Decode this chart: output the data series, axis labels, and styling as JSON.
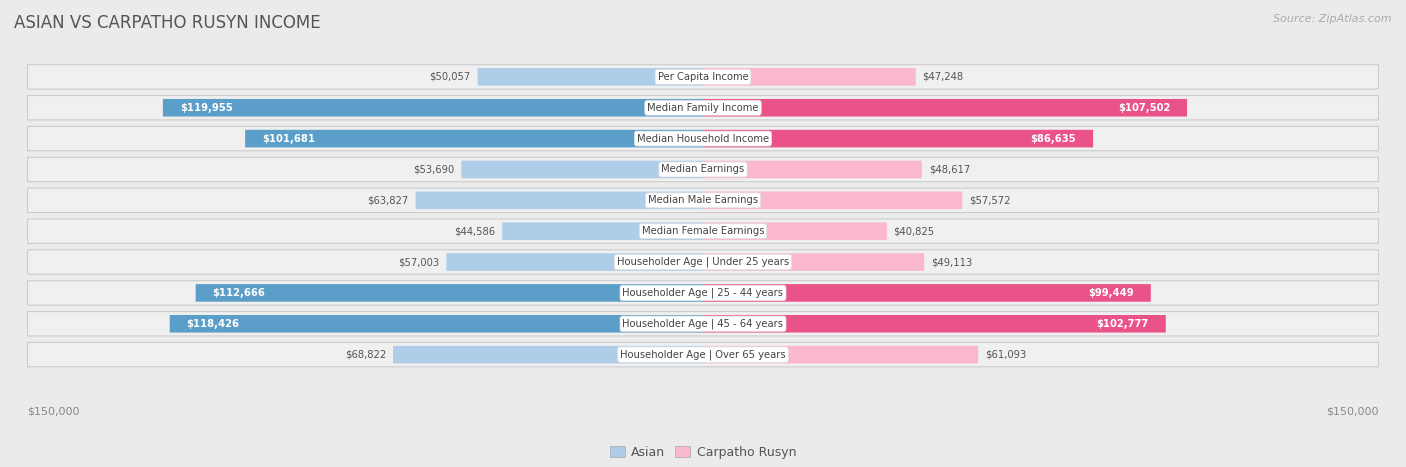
{
  "title": "ASIAN VS CARPATHO RUSYN INCOME",
  "source": "Source: ZipAtlas.com",
  "categories": [
    "Per Capita Income",
    "Median Family Income",
    "Median Household Income",
    "Median Earnings",
    "Median Male Earnings",
    "Median Female Earnings",
    "Householder Age | Under 25 years",
    "Householder Age | 25 - 44 years",
    "Householder Age | 45 - 64 years",
    "Householder Age | Over 65 years"
  ],
  "asian_values": [
    50057,
    119955,
    101681,
    53690,
    63827,
    44586,
    57003,
    112666,
    118426,
    68822
  ],
  "rusyn_values": [
    47248,
    107502,
    86635,
    48617,
    57572,
    40825,
    49113,
    99449,
    102777,
    61093
  ],
  "asian_color_light": "#aecde8",
  "asian_color_dark": "#5b9ec9",
  "rusyn_color_light": "#f9b8cf",
  "rusyn_color_dark": "#e9538a",
  "asian_label": "Asian",
  "rusyn_label": "Carpatho Rusyn",
  "x_max": 150000,
  "x_label_left": "$150,000",
  "x_label_right": "$150,000",
  "bg_color": "#ebebeb",
  "row_bg_color": "#f7f7f7",
  "row_bg_alt": "#e8e8e8",
  "title_color": "#555555",
  "source_color": "#aaaaaa",
  "bar_threshold": 75000,
  "value_threshold": 75000
}
